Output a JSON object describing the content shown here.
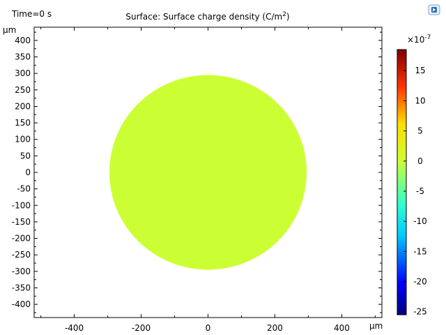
{
  "time_label": "Time=0 s",
  "title_main": "Surface: Surface charge density (C/m",
  "title_sup": "2",
  "title_end": ")",
  "chart_data": {
    "type": "heatmap",
    "title": "Surface: Surface charge density (C/m2)",
    "annotation": "Time=0 s",
    "x_unit_label": "µm",
    "y_unit_label": "µm",
    "xlim": [
      -520,
      520
    ],
    "ylim": [
      -440,
      440
    ],
    "x_ticks": [
      -400,
      -200,
      0,
      200,
      400
    ],
    "y_ticks": [
      400,
      350,
      300,
      250,
      200,
      150,
      100,
      50,
      0,
      -50,
      -100,
      -150,
      -200,
      -250,
      -300,
      -350,
      -400
    ],
    "x_ticks_minor_step": 100,
    "y_ticks_minor_step": 25,
    "domain_shape": "circle",
    "circle_center": [
      0,
      0
    ],
    "circle_radius": 295,
    "surface_value_e7": -1.8,
    "surface_color": "#ccff33",
    "colorbar": {
      "multiplier_base": "×10",
      "multiplier_exp": "-7",
      "min": -25.5,
      "max": 18.5,
      "ticks": [
        15,
        10,
        5,
        0,
        -5,
        -10,
        -15,
        -20,
        -25
      ],
      "colormap": "rainbow"
    }
  }
}
